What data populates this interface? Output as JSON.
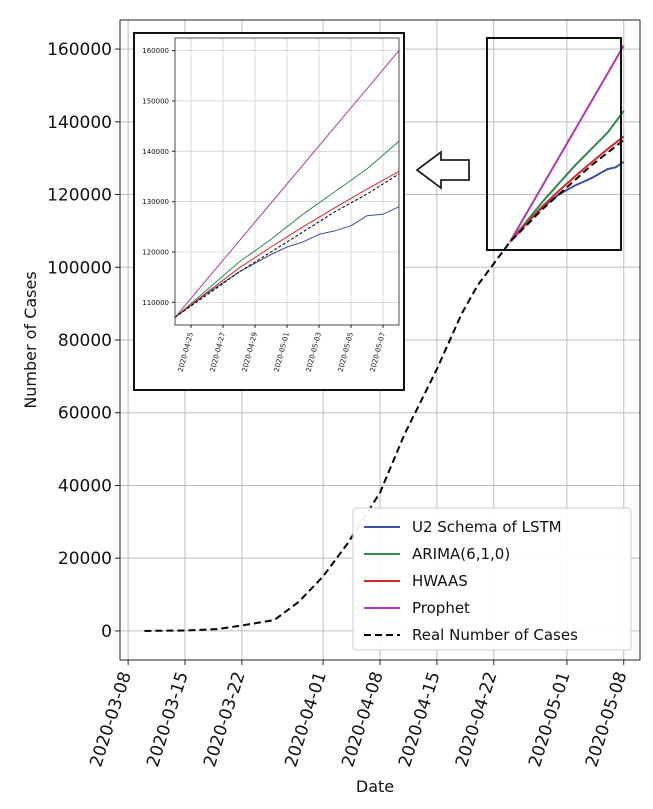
{
  "chart_data": [
    {
      "id": "main",
      "type": "line",
      "title": "",
      "xlabel": "Date",
      "ylabel": "Number of Cases",
      "ylim": [
        -8000,
        168000
      ],
      "xlim": [
        "2020-03-07",
        "2020-05-10"
      ],
      "grid": true,
      "legend_position": "bottom-right",
      "x_ticks": [
        "2020-03-08",
        "2020-03-15",
        "2020-03-22",
        "2020-04-01",
        "2020-04-08",
        "2020-04-15",
        "2020-04-22",
        "2020-05-01",
        "2020-05-08"
      ],
      "y_ticks": [
        0,
        20000,
        40000,
        60000,
        80000,
        100000,
        120000,
        140000,
        160000
      ],
      "series": [
        {
          "name": "U2 Schema of LSTM",
          "color": "#3b4fa0",
          "dash": false,
          "points": [
            [
              "2020-04-24",
              107000
            ],
            [
              "2020-04-26",
              112000
            ],
            [
              "2020-04-28",
              116500
            ],
            [
              "2020-04-30",
              120000
            ],
            [
              "2020-05-02",
              122500
            ],
            [
              "2020-05-04",
              124500
            ],
            [
              "2020-05-06",
              127000
            ],
            [
              "2020-05-07",
              127500
            ],
            [
              "2020-05-08",
              129000
            ]
          ]
        },
        {
          "name": "ARIMA(6,1,0)",
          "color": "#2e8b4a",
          "dash": false,
          "points": [
            [
              "2020-04-24",
              107000
            ],
            [
              "2020-04-26",
              112500
            ],
            [
              "2020-04-28",
              118000
            ],
            [
              "2020-04-30",
              123000
            ],
            [
              "2020-05-02",
              128000
            ],
            [
              "2020-05-04",
              132500
            ],
            [
              "2020-05-06",
              137000
            ],
            [
              "2020-05-08",
              143000
            ]
          ]
        },
        {
          "name": "HWAAS",
          "color": "#d62728",
          "dash": false,
          "points": [
            [
              "2020-04-24",
              107000
            ],
            [
              "2020-04-26",
              112000
            ],
            [
              "2020-04-28",
              116800
            ],
            [
              "2020-04-30",
              121000
            ],
            [
              "2020-05-02",
              125000
            ],
            [
              "2020-05-04",
              128800
            ],
            [
              "2020-05-06",
              132500
            ],
            [
              "2020-05-08",
              136000
            ]
          ]
        },
        {
          "name": "Prophet",
          "color": "#b03aa8",
          "dash": false,
          "points": [
            [
              "2020-04-24",
              107000
            ],
            [
              "2020-05-08",
              161000
            ]
          ]
        },
        {
          "name": "Real Number of Cases",
          "color": "#000000",
          "dash": true,
          "points": [
            [
              "2020-03-10",
              0
            ],
            [
              "2020-03-15",
              100
            ],
            [
              "2020-03-19",
              500
            ],
            [
              "2020-03-22",
              1500
            ],
            [
              "2020-03-26",
              3000
            ],
            [
              "2020-03-29",
              8000
            ],
            [
              "2020-04-01",
              15000
            ],
            [
              "2020-04-04",
              24000
            ],
            [
              "2020-04-08",
              38000
            ],
            [
              "2020-04-11",
              54000
            ],
            [
              "2020-04-15",
              72000
            ],
            [
              "2020-04-18",
              87000
            ],
            [
              "2020-04-20",
              95000
            ],
            [
              "2020-04-22",
              101000
            ],
            [
              "2020-04-24",
              107000
            ],
            [
              "2020-04-26",
              111500
            ],
            [
              "2020-04-28",
              116000
            ],
            [
              "2020-04-30",
              120000
            ],
            [
              "2020-05-02",
              124000
            ],
            [
              "2020-05-04",
              128000
            ],
            [
              "2020-05-06",
              131500
            ],
            [
              "2020-05-08",
              135000
            ]
          ]
        }
      ]
    },
    {
      "id": "inset",
      "type": "line",
      "title": "",
      "xlabel": "",
      "ylabel": "",
      "ylim": [
        105500,
        162500
      ],
      "xlim": [
        "2020-04-24",
        "2020-05-08"
      ],
      "grid": true,
      "x_ticks": [
        "2020-04-25",
        "2020-04-27",
        "2020-04-29",
        "2020-05-01",
        "2020-05-03",
        "2020-05-05",
        "2020-05-07"
      ],
      "y_ticks": [
        110000,
        120000,
        130000,
        140000,
        150000,
        160000
      ],
      "series": [
        {
          "name": "U2 Schema of LSTM",
          "color": "#3b4fa0",
          "dash": false,
          "points": [
            [
              "2020-04-24",
              107000
            ],
            [
              "2020-04-26",
              111800
            ],
            [
              "2020-04-28",
              116000
            ],
            [
              "2020-04-30",
              119500
            ],
            [
              "2020-05-01",
              121000
            ],
            [
              "2020-05-02",
              122000
            ],
            [
              "2020-05-03",
              123500
            ],
            [
              "2020-05-04",
              124200
            ],
            [
              "2020-05-05",
              125200
            ],
            [
              "2020-05-06",
              127200
            ],
            [
              "2020-05-07",
              127500
            ],
            [
              "2020-05-08",
              129000
            ]
          ]
        },
        {
          "name": "ARIMA(6,1,0)",
          "color": "#2e8b4a",
          "dash": false,
          "points": [
            [
              "2020-04-24",
              107000
            ],
            [
              "2020-04-26",
              112500
            ],
            [
              "2020-04-28",
              118000
            ],
            [
              "2020-04-30",
              122500
            ],
            [
              "2020-05-02",
              127500
            ],
            [
              "2020-05-04",
              132000
            ],
            [
              "2020-05-06",
              136500
            ],
            [
              "2020-05-08",
              142000
            ]
          ]
        },
        {
          "name": "HWAAS",
          "color": "#d62728",
          "dash": false,
          "points": [
            [
              "2020-04-24",
              107000
            ],
            [
              "2020-04-26",
              112000
            ],
            [
              "2020-04-28",
              116800
            ],
            [
              "2020-04-30",
              121000
            ],
            [
              "2020-05-02",
              125000
            ],
            [
              "2020-05-04",
              128800
            ],
            [
              "2020-05-06",
              132500
            ],
            [
              "2020-05-08",
              136000
            ]
          ]
        },
        {
          "name": "Prophet",
          "color": "#b03aa8",
          "dash": false,
          "points": [
            [
              "2020-04-24",
              107000
            ],
            [
              "2020-05-08",
              160000
            ]
          ]
        },
        {
          "name": "Real Number of Cases",
          "color": "#000000",
          "dash": true,
          "points": [
            [
              "2020-04-24",
              107000
            ],
            [
              "2020-04-26",
              111500
            ],
            [
              "2020-04-28",
              116000
            ],
            [
              "2020-04-30",
              120000
            ],
            [
              "2020-05-02",
              124000
            ],
            [
              "2020-05-04",
              128000
            ],
            [
              "2020-05-06",
              131500
            ],
            [
              "2020-05-08",
              135500
            ]
          ]
        }
      ]
    }
  ]
}
